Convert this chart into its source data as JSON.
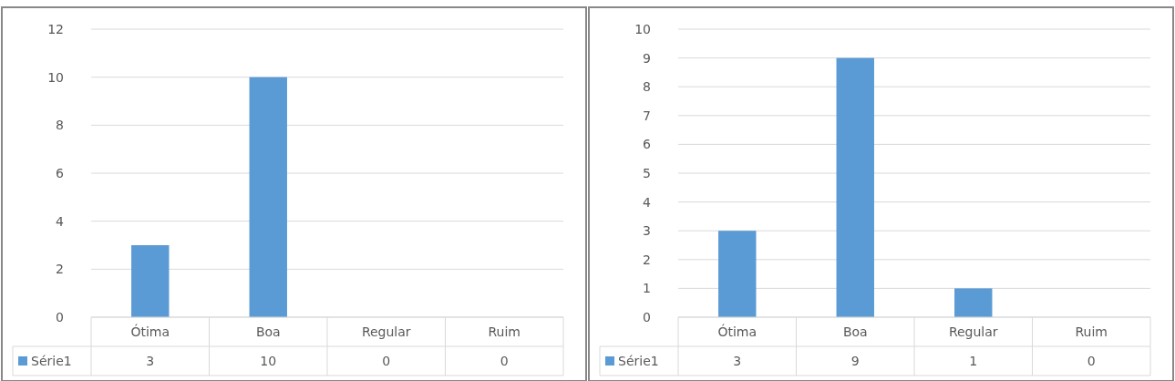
{
  "chart_data": [
    {
      "type": "bar",
      "categories": [
        "Ótima",
        "Boa",
        "Regular",
        "Ruim"
      ],
      "series": [
        {
          "name": "Série1",
          "color": "#5b9bd5",
          "values": [
            3,
            10,
            0,
            0
          ]
        }
      ],
      "ylim": [
        0,
        12
      ],
      "yticks": [
        0,
        2,
        4,
        6,
        8,
        10,
        12
      ],
      "grid": "y",
      "legend": "bottom",
      "data_labels": true
    },
    {
      "type": "bar",
      "categories": [
        "Ótima",
        "Boa",
        "Regular",
        "Ruim"
      ],
      "series": [
        {
          "name": "Série1",
          "color": "#5b9bd5",
          "values": [
            3,
            9,
            1,
            0
          ]
        }
      ],
      "ylim": [
        0,
        10
      ],
      "yticks": [
        0,
        1,
        2,
        3,
        4,
        5,
        6,
        7,
        8,
        9,
        10
      ],
      "grid": "y",
      "legend": "bottom",
      "data_labels": true
    }
  ]
}
